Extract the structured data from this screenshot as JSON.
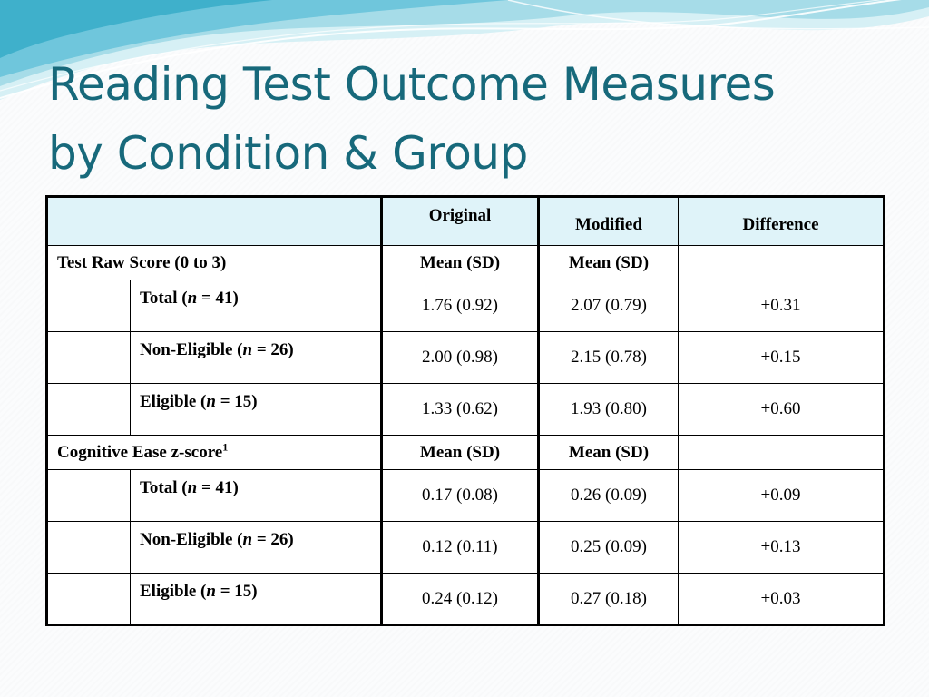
{
  "title": {
    "line1": "Reading Test Outcome Measures",
    "line2": "by Condition & Group"
  },
  "table": {
    "header": {
      "original": "Original",
      "modified": "Modified",
      "difference": "Difference"
    },
    "sections": [
      {
        "label": "Test Raw Score (0 to 3)",
        "original_stat": "Mean (SD)",
        "modified_stat": "Mean (SD)",
        "rows": [
          {
            "group": "Total (",
            "n_label": "n",
            "n_rest": " = 41)",
            "original": "1.76 (0.92)",
            "modified": "2.07 (0.79)",
            "difference": "+0.31"
          },
          {
            "group": "Non-Eligible (",
            "n_label": "n",
            "n_rest": " = 26)",
            "original": "2.00 (0.98)",
            "modified": "2.15 (0.78)",
            "difference": "+0.15"
          },
          {
            "group": "Eligible  (",
            "n_label": "n",
            "n_rest": " = 15)",
            "original": "1.33 (0.62)",
            "modified": "1.93 (0.80)",
            "difference": "+0.60"
          }
        ]
      },
      {
        "label": "Cognitive Ease z-score",
        "label_sup": "1",
        "original_stat": "Mean (SD)",
        "modified_stat": "Mean (SD)",
        "rows": [
          {
            "group": "Total  (",
            "n_label": "n",
            "n_rest": " = 41)",
            "original": "0.17 (0.08)",
            "modified": "0.26 (0.09)",
            "difference": "+0.09"
          },
          {
            "group": "Non-Eligible (",
            "n_label": "n",
            "n_rest": " = 26)",
            "original": "0.12 (0.11)",
            "modified": "0.25 (0.09)",
            "difference": "+0.13"
          },
          {
            "group": "Eligible (",
            "n_label": "n",
            "n_rest": " = 15)",
            "original": "0.24 (0.12)",
            "modified": "0.27 (0.18)",
            "difference": "+0.03"
          }
        ]
      }
    ]
  },
  "colors": {
    "title": "#17697b",
    "header_fill": "#dff3f9",
    "wave_light": "#bfe6ef",
    "wave_mid": "#7fcfe0",
    "wave_dark": "#3fb3cf"
  }
}
